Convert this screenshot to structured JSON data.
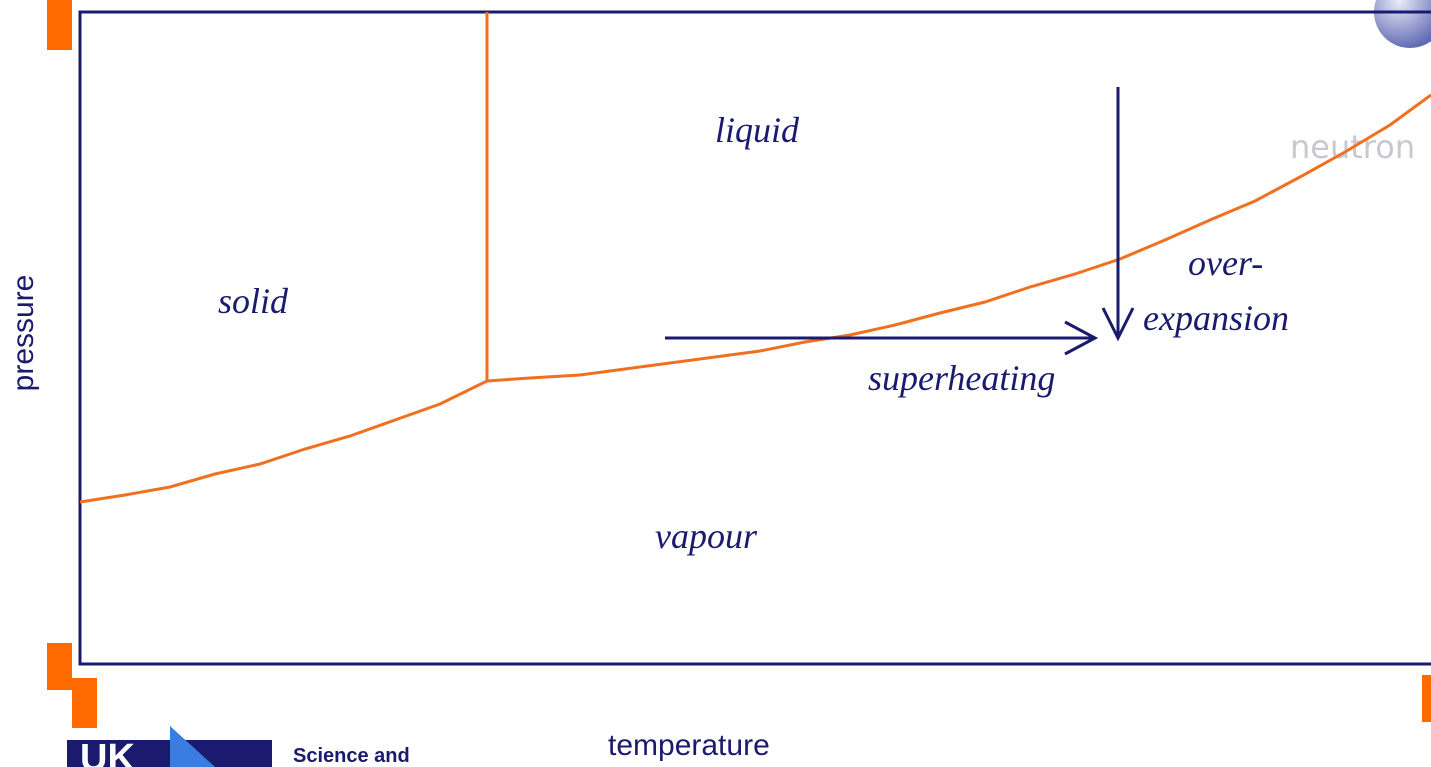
{
  "axes": {
    "y_label": "pressure",
    "x_label": "temperature"
  },
  "regions": {
    "solid": "solid",
    "liquid": "liquid",
    "vapour": "vapour"
  },
  "processes": {
    "over_expansion": [
      "over-",
      "expansion"
    ],
    "superheating": "superheating"
  },
  "watermark": "neutron",
  "logo": {
    "text": "Science and"
  }
}
